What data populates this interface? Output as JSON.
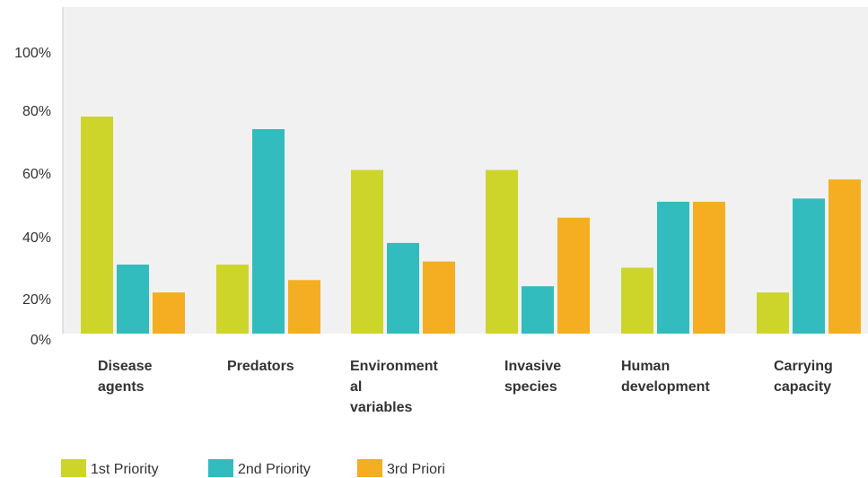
{
  "chart_data": {
    "type": "bar",
    "title": "",
    "xlabel": "",
    "ylabel": "",
    "ylim": [
      0,
      100
    ],
    "y_ticks": [
      "0%",
      "20%",
      "40%",
      "60%",
      "80%",
      "100%"
    ],
    "y_tick_values": [
      0,
      20,
      40,
      60,
      80,
      100
    ],
    "categories": [
      [
        "Disease",
        "agents"
      ],
      [
        "Predators"
      ],
      [
        "Environment",
        "al",
        "variables"
      ],
      [
        "Invasive",
        "species"
      ],
      [
        "Human",
        "development"
      ],
      [
        "Carrying",
        "capacity"
      ]
    ],
    "series": [
      {
        "name": "1st Priority",
        "color": "#cdd52a",
        "values": [
          78,
          31,
          61,
          61,
          30,
          22
        ]
      },
      {
        "name": "2nd Priority",
        "color": "#32bcbe",
        "values": [
          31,
          74,
          38,
          24,
          51,
          52
        ]
      },
      {
        "name": "3rd Priori",
        "color": "#f5ae21",
        "values": [
          22,
          26,
          32,
          46,
          51,
          58
        ]
      }
    ],
    "grid": false,
    "legend_position": "bottom-left"
  },
  "colors": {
    "plot_background": "#f1f1f1",
    "axis_line": "#c8c8c8",
    "text": "#333333"
  }
}
